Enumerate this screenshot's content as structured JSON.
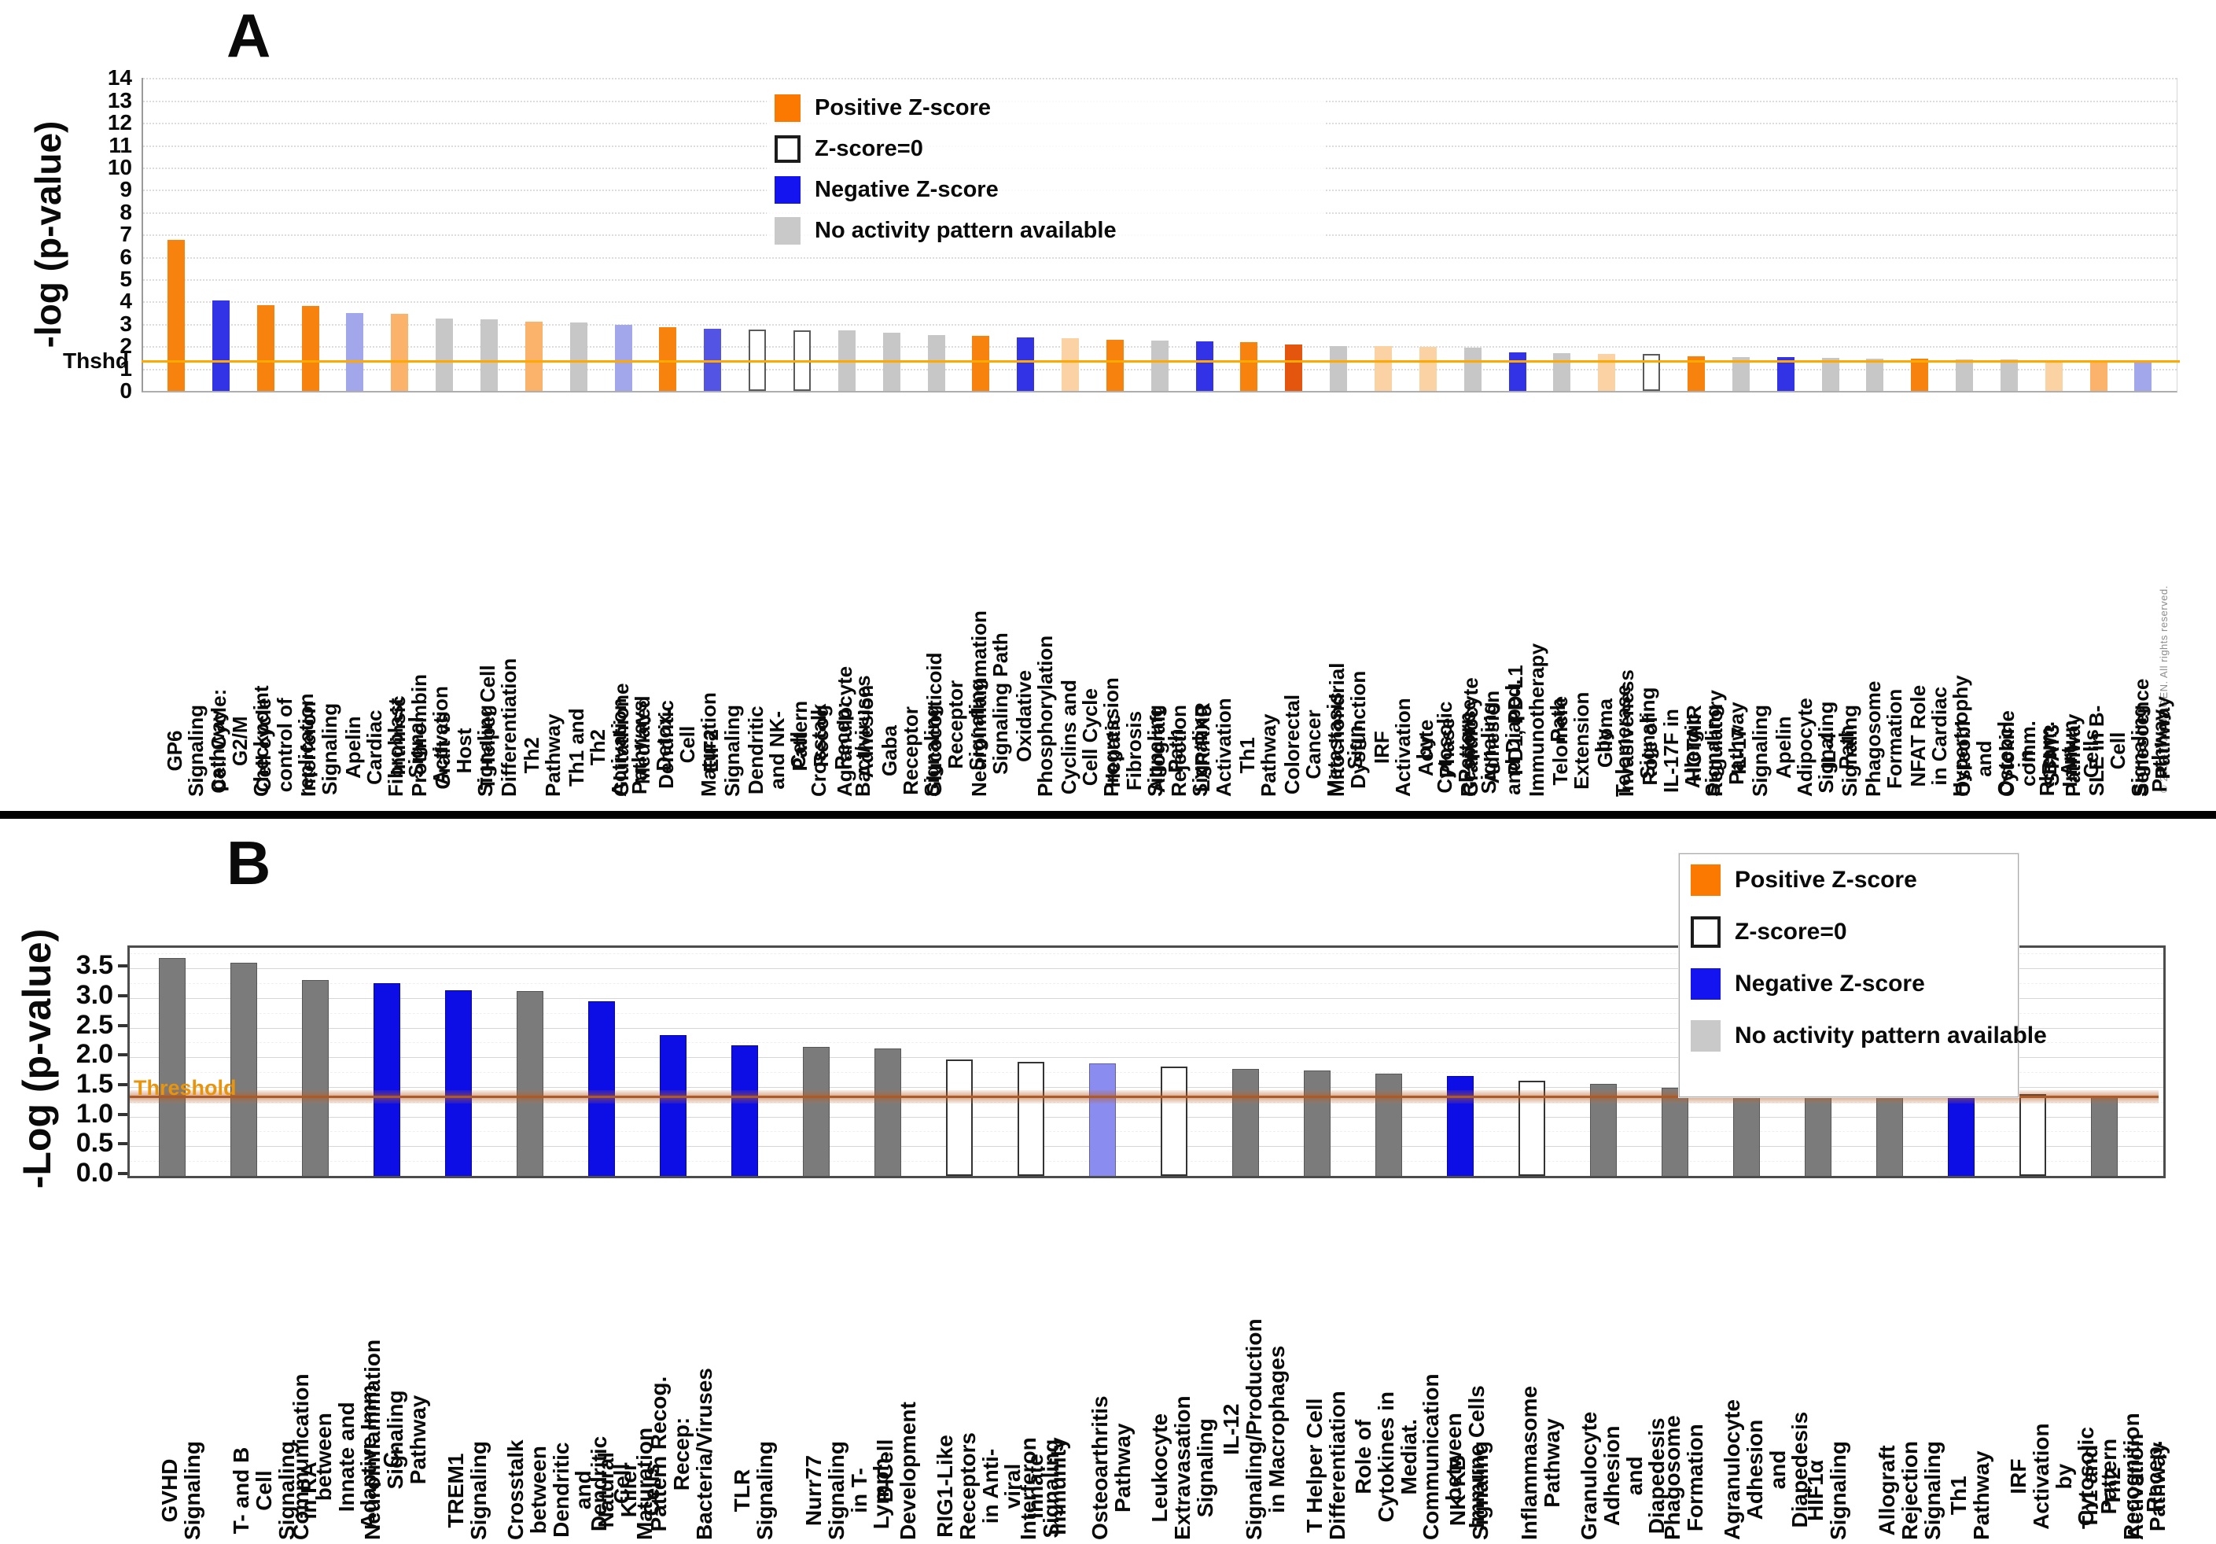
{
  "footer": {
    "copyright": "© 2000-2020 QIAGEN. All rights reserved."
  },
  "chart_data": [
    {
      "panel": "A",
      "type": "bar",
      "title": "A",
      "ylabel": "-log (p-value)",
      "ylim": [
        0,
        14
      ],
      "ytick_step": 1,
      "grid": "dotted horizontal lines at every integer",
      "threshold": {
        "label": "Thshd",
        "value": 1.3,
        "color": "#FFA800"
      },
      "legend_position": "top-center",
      "legend": [
        {
          "label": "Positive Z-score",
          "color": "#FB7900"
        },
        {
          "label": "Z-score=0",
          "color": "#FFFFFF"
        },
        {
          "label": "Negative Z-score",
          "color": "#1414F0"
        },
        {
          "label": "No activity pattern available",
          "color": "#C9C9C9"
        }
      ],
      "palette": {
        "orange": "#F8820E",
        "dark_orange": "#E4550E",
        "light_orange": "#FBB26A",
        "pale_orange": "#FAD2A4",
        "blue": "#3232E6",
        "med_blue": "#5454E4",
        "light_blue": "#A2A7EC",
        "gray": "#C7C7C7",
        "white": "#FFFFFF"
      },
      "bars": [
        {
          "label": "GP6 Signaling pathway",
          "value": 6.75,
          "color": "orange"
        },
        {
          "label": "Cell Cycle: G2/M Checkpoint",
          "value": 4.05,
          "color": "blue"
        },
        {
          "label": "Cell cycle control of replication",
          "value": 3.85,
          "color": "orange"
        },
        {
          "label": "Interferon Signaling",
          "value": 3.8,
          "color": "orange"
        },
        {
          "label": "Apelin Cardiac Fibroblast Signal",
          "value": 3.5,
          "color": "light_blue"
        },
        {
          "label": "Intrinsic Prothrombin Activation",
          "value": 3.47,
          "color": "light_orange"
        },
        {
          "label": "Graft vs Host Signaling",
          "value": 3.25,
          "color": "gray"
        },
        {
          "label": "T Helper Cell Differentiation",
          "value": 3.2,
          "color": "gray"
        },
        {
          "label": "Th2 Pathway",
          "value": 3.1,
          "color": "light_orange"
        },
        {
          "label": "Th1 and Th2 Activation Pathways",
          "value": 3.05,
          "color": "gray"
        },
        {
          "label": "Glutathione Mediated Detox.",
          "value": 2.95,
          "color": "light_blue"
        },
        {
          "label": "Dendritic Cell Maturation",
          "value": 2.85,
          "color": "orange"
        },
        {
          "label": "EIF2 Signaling",
          "value": 2.8,
          "color": "med_blue"
        },
        {
          "label": "Dendritic and NK-Cell Crosstalk",
          "value": 2.75,
          "color": "white"
        },
        {
          "label": "Pattern Recog Recep: Bact/viruses",
          "value": 2.7,
          "color": "white"
        },
        {
          "label": "Agranulocyte Adhesion",
          "value": 2.72,
          "color": "gray"
        },
        {
          "label": "Gaba Receptor Signaling",
          "value": 2.6,
          "color": "gray"
        },
        {
          "label": "Glucocorticoid Receptor Signaling",
          "value": 2.5,
          "color": "gray"
        },
        {
          "label": "Neuroinflammation Signaling Path",
          "value": 2.45,
          "color": "orange"
        },
        {
          "label": "Oxidative Phosphorylation",
          "value": 2.4,
          "color": "blue"
        },
        {
          "label": "Cyclins and Cell Cycle Progression",
          "value": 2.35,
          "color": "pale_orange"
        },
        {
          "label": "Hepatic Fibrosis Signaling Path",
          "value": 2.3,
          "color": "orange"
        },
        {
          "label": "Allograft Rejection Signaling",
          "value": 2.27,
          "color": "gray"
        },
        {
          "label": "LXR/RXR Activation",
          "value": 2.22,
          "color": "blue"
        },
        {
          "label": "Th1 Pathway",
          "value": 2.18,
          "color": "orange"
        },
        {
          "label": "Colorectal Cancer Metastasis Sign.",
          "value": 2.08,
          "color": "dark_orange"
        },
        {
          "label": "Mitochondrial Dysfunction",
          "value": 2.02,
          "color": "gray"
        },
        {
          "label": "IRF Activation by Cytosolic Pattern",
          "value": 2.0,
          "color": "pale_orange"
        },
        {
          "label": "Acute Phase Response Signaling",
          "value": 1.97,
          "color": "pale_orange"
        },
        {
          "label": "Granulocyte Adhesion and Diaped.",
          "value": 1.95,
          "color": "gray"
        },
        {
          "label": "PD1, PD-L1 Immunotherapy Path",
          "value": 1.73,
          "color": "blue"
        },
        {
          "label": "Telomere Extension by Telomerase",
          "value": 1.7,
          "color": "gray"
        },
        {
          "label": "Glioma Invasiveness Signaling",
          "value": 1.66,
          "color": "pale_orange"
        },
        {
          "label": "Role of IL-17F in Allergic Signaling",
          "value": 1.64,
          "color": "white"
        },
        {
          "label": "HOTAIR Regulatory Pathway",
          "value": 1.56,
          "color": "orange"
        },
        {
          "label": "IL-17 Signaling",
          "value": 1.53,
          "color": "gray"
        },
        {
          "label": "Apelin Adipocyte Signaling Path",
          "value": 1.52,
          "color": "blue"
        },
        {
          "label": "IL-4 Signaling",
          "value": 1.47,
          "color": "gray"
        },
        {
          "label": "Phagosome Formation",
          "value": 1.46,
          "color": "gray"
        },
        {
          "label": "NFAT Role in Cardiac Hypertrophy",
          "value": 1.46,
          "color": "orange"
        },
        {
          "label": "Osteobl and Osteocl in Rheum. Art.",
          "value": 1.41,
          "color": "gray"
        },
        {
          "label": "Cytokine comm. Btw. Immun Cells",
          "value": 1.4,
          "color": "gray"
        },
        {
          "label": "STAT3 Pathway",
          "value": 1.36,
          "color": "pale_orange"
        },
        {
          "label": "SLE in B-Cell Signaling Pathway",
          "value": 1.36,
          "color": "light_orange"
        },
        {
          "label": "Senescence Pathway",
          "value": 1.34,
          "color": "light_blue"
        }
      ]
    },
    {
      "panel": "B",
      "type": "bar",
      "title": "B",
      "ylabel": "-Log (p-value)",
      "ylim": [
        0,
        3.85
      ],
      "ytick_step": 0.5,
      "grid": "solid light lines every 0.5, dashed minor lines every 0.25",
      "threshold": {
        "label": "Threshold",
        "value": 1.3,
        "color": "#AD5A26"
      },
      "legend_position": "top-right",
      "legend": [
        {
          "label": "Positive Z-score",
          "color": "#FB7900"
        },
        {
          "label": "Z-score=0",
          "color": "#FFFFFF"
        },
        {
          "label": "Negative Z-score",
          "color": "#1414F0"
        },
        {
          "label": "No activity pattern available",
          "color": "#C9C9C9"
        }
      ],
      "palette": {
        "gray": "#7B7B7B",
        "blue": "#0D0DE6",
        "light_blue": "#8A8CF0",
        "white": "#FFFFFF"
      },
      "bars": [
        {
          "label": "GVHD Signaling",
          "value": 3.68,
          "color": "gray"
        },
        {
          "label": "T- and B Cell Signaling in RA",
          "value": 3.6,
          "color": "gray"
        },
        {
          "label": "Communication between\nInnate and Adaptive Imm C.",
          "value": 3.3,
          "color": "gray"
        },
        {
          "label": "Neuroinflammation Signaling\nPathway",
          "value": 3.25,
          "color": "blue"
        },
        {
          "label": "TREM1 Signaling",
          "value": 3.13,
          "color": "blue"
        },
        {
          "label": "Crosstalk between Dendritic\nand Natural Killer Cells",
          "value": 3.12,
          "color": "gray"
        },
        {
          "label": "Dendritic Cell Maturation",
          "value": 2.95,
          "color": "blue"
        },
        {
          "label": "Pattern Recog. Recep:\nBacteria/Viruses",
          "value": 2.37,
          "color": "blue"
        },
        {
          "label": "TLR Signaling",
          "value": 2.2,
          "color": "blue"
        },
        {
          "label": "Nurr77 Signaling in T-Lymph.",
          "value": 2.17,
          "color": "gray"
        },
        {
          "label": "B-Cell Development",
          "value": 2.15,
          "color": "gray"
        },
        {
          "label": "RIG1-Like Receptors in Anti-\nviral Innate Immunity",
          "value": 1.97,
          "color": "white"
        },
        {
          "label": "Interferon Signaling",
          "value": 1.93,
          "color": "white"
        },
        {
          "label": "Osteoarthritis Pathway",
          "value": 1.9,
          "color": "light_blue"
        },
        {
          "label": "Leukocyte Extravasation\nSignaling",
          "value": 1.85,
          "color": "white"
        },
        {
          "label": "IL-12 Signaling/Production\nin Macrophages",
          "value": 1.8,
          "color": "gray"
        },
        {
          "label": "T Helper Cell Differentiation",
          "value": 1.78,
          "color": "gray"
        },
        {
          "label": "Role of Cytokines in Mediat.\nCommunication between\nImmune Cells",
          "value": 1.73,
          "color": "gray"
        },
        {
          "label": "NK-KB Signaling",
          "value": 1.68,
          "color": "blue"
        },
        {
          "label": "Inflammasome Pathway",
          "value": 1.6,
          "color": "white"
        },
        {
          "label": "Granulocyte Adhesion and\nDiapedesis",
          "value": 1.55,
          "color": "gray"
        },
        {
          "label": "Phagosome Formation",
          "value": 1.48,
          "color": "gray"
        },
        {
          "label": "Agranulocyte Adhesion and\nDiapedesis",
          "value": 1.46,
          "color": "gray"
        },
        {
          "label": "HIF1α Signaling",
          "value": 1.45,
          "color": "gray"
        },
        {
          "label": "Allograft Rejection Signaling",
          "value": 1.43,
          "color": "gray"
        },
        {
          "label": "Th1 Pathway",
          "value": 1.4,
          "color": "blue"
        },
        {
          "label": "IRF Activation by Cytosolic\nPattern Recognition Recep.",
          "value": 1.38,
          "color": "white"
        },
        {
          "label": "Th1 and Th2 Activation\nPathway",
          "value": 1.35,
          "color": "gray"
        }
      ]
    }
  ]
}
